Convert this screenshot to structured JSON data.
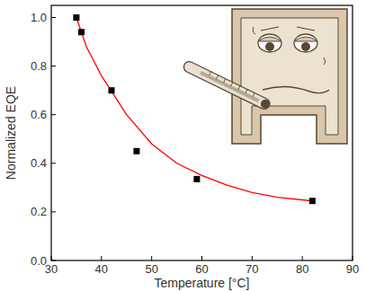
{
  "chart_data": {
    "type": "scatter",
    "x_label": "Temperature [°C]",
    "y_label": "Normalized EQE",
    "xlim": [
      30,
      90
    ],
    "xticks": [
      30,
      40,
      50,
      60,
      70,
      80,
      90
    ],
    "ylim": [
      0,
      1.05
    ],
    "yticks": [
      {
        "value": 0,
        "label": "0.0"
      },
      0.2,
      0.4,
      0.6,
      0.8,
      {
        "value": 1,
        "label": "1.0"
      }
    ],
    "grid": false,
    "series": [
      {
        "type": "scatter",
        "marker": "square",
        "color": "#000000",
        "x": [
          35,
          36,
          42,
          47,
          59,
          82
        ],
        "values": [
          1.0,
          0.94,
          0.7,
          0.45,
          0.335,
          0.245
        ]
      },
      {
        "type": "line",
        "line_style": "solid",
        "color": "#ff0000",
        "x": [
          35,
          37,
          40,
          45,
          50,
          55,
          60,
          65,
          70,
          75,
          82
        ],
        "values": [
          1.0,
          0.88,
          0.76,
          0.6,
          0.48,
          0.4,
          0.35,
          0.31,
          0.28,
          0.26,
          0.245
        ]
      }
    ]
  }
}
